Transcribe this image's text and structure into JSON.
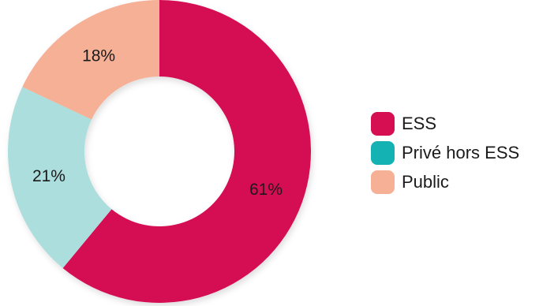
{
  "chart_data": {
    "type": "pie",
    "variant": "donut",
    "title": "",
    "legend_position": "right",
    "slices": [
      {
        "name": "ESS",
        "value": 61,
        "label": "61%",
        "color": "#d50f52",
        "chart_color": "#d50f52"
      },
      {
        "name": "Privé hors ESS",
        "value": 21,
        "label": "21%",
        "color": "#14b2b2",
        "chart_color": "#acdedd"
      },
      {
        "name": "Public",
        "value": 18,
        "label": "18%",
        "color": "#f6b096",
        "chart_color": "#f6b096"
      }
    ]
  }
}
